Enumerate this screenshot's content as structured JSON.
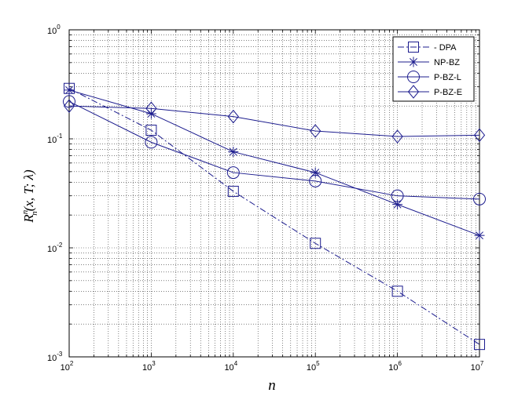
{
  "chart_data": {
    "type": "line",
    "title": "",
    "xlabel": "n",
    "ylabel": "R",
    "ylabel_sup": "n",
    "ylabel_sub": "n",
    "ylabel_args": "(x, T; λ)",
    "x_scale": "log",
    "y_scale": "log",
    "xlim": [
      100,
      10000000
    ],
    "ylim": [
      0.001,
      1
    ],
    "x": [
      100,
      1000,
      10000,
      100000,
      1000000,
      10000000
    ],
    "x_ticks": [
      {
        "base": "10",
        "exp": "2"
      },
      {
        "base": "10",
        "exp": "3"
      },
      {
        "base": "10",
        "exp": "4"
      },
      {
        "base": "10",
        "exp": "5"
      },
      {
        "base": "10",
        "exp": "6"
      },
      {
        "base": "10",
        "exp": "7"
      }
    ],
    "y_ticks": [
      {
        "base": "10",
        "exp": "-3"
      },
      {
        "base": "10",
        "exp": "-2"
      },
      {
        "base": "10",
        "exp": "-1"
      },
      {
        "base": "10",
        "exp": "0"
      }
    ],
    "grid": true,
    "legend_position": "top-right",
    "color": "#1c1c8e",
    "series": [
      {
        "name": "DPA",
        "legend_label": "- DPA",
        "marker": "square",
        "line": "dashdot",
        "values": [
          0.29,
          0.12,
          0.033,
          0.011,
          0.004,
          0.0013
        ]
      },
      {
        "name": "NP-BZ",
        "legend_label": "NP-BZ",
        "marker": "star",
        "line": "solid",
        "values": [
          0.28,
          0.17,
          0.076,
          0.049,
          0.025,
          0.013
        ]
      },
      {
        "name": "P-BZ-L",
        "legend_label": "P-BZ-L",
        "marker": "circle",
        "line": "solid",
        "values": [
          0.22,
          0.093,
          0.049,
          0.041,
          0.03,
          0.028
        ]
      },
      {
        "name": "P-BZ-E",
        "legend_label": "P-BZ-E",
        "marker": "diamond",
        "line": "solid",
        "values": [
          0.2,
          0.19,
          0.16,
          0.118,
          0.105,
          0.108
        ]
      }
    ]
  }
}
